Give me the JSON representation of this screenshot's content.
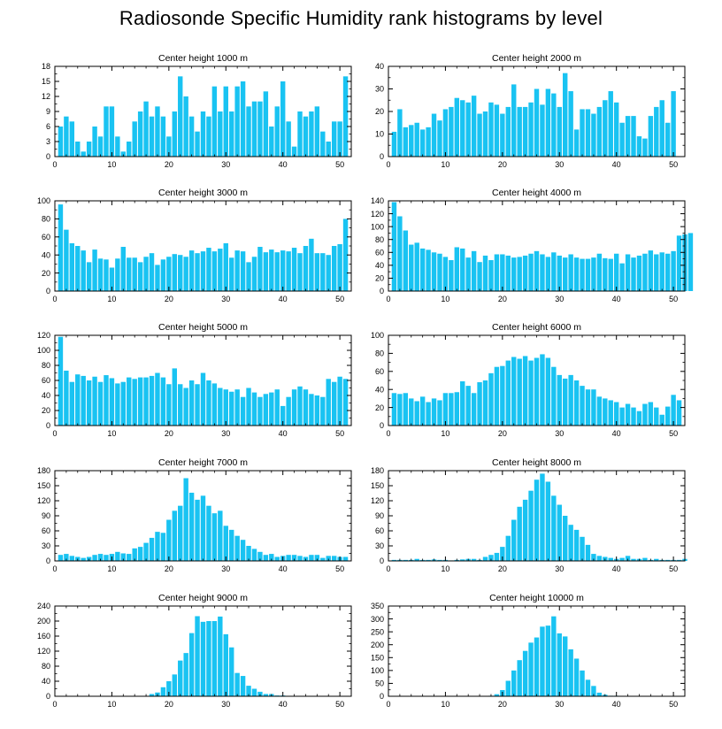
{
  "title": "Radiosonde Specific Humidity rank histograms by level",
  "bar_color": "#19c3f2",
  "chart_data": [
    {
      "type": "bar",
      "title": "Center height 1000 m",
      "xlim": [
        0,
        52
      ],
      "ylim": [
        0,
        18
      ],
      "xticks": [
        0,
        10,
        20,
        30,
        40,
        50
      ],
      "yticks": [
        0,
        3,
        6,
        9,
        12,
        15,
        18
      ],
      "values": [
        6,
        8,
        7,
        3,
        1,
        3,
        6,
        4,
        10,
        10,
        4,
        1,
        3,
        7,
        9,
        11,
        8,
        10,
        8,
        4,
        9,
        16,
        12,
        8,
        5,
        9,
        8,
        14,
        9,
        14,
        9,
        14,
        15,
        10,
        11,
        11,
        13,
        6,
        10,
        15,
        7,
        2,
        9,
        8,
        9,
        10,
        5,
        3,
        7,
        7,
        16
      ]
    },
    {
      "type": "bar",
      "title": "Center height 2000 m",
      "xlim": [
        0,
        52
      ],
      "ylim": [
        0,
        40
      ],
      "xticks": [
        0,
        10,
        20,
        30,
        40,
        50
      ],
      "yticks": [
        0,
        10,
        20,
        30,
        40
      ],
      "values": [
        11,
        21,
        13,
        14,
        15,
        12,
        13,
        19,
        16,
        21,
        22,
        26,
        25,
        24,
        27,
        19,
        20,
        24,
        23,
        19,
        22,
        32,
        22,
        22,
        24,
        30,
        23,
        30,
        28,
        22,
        37,
        29,
        12,
        21,
        21,
        19,
        22,
        25,
        29,
        24,
        15,
        18,
        18,
        9,
        8,
        18,
        22,
        25,
        15,
        29
      ]
    },
    {
      "type": "bar",
      "title": "Center height 3000 m",
      "xlim": [
        0,
        52
      ],
      "ylim": [
        0,
        100
      ],
      "xticks": [
        0,
        10,
        20,
        30,
        40,
        50
      ],
      "yticks": [
        0,
        20,
        40,
        60,
        80,
        100
      ],
      "values": [
        96,
        68,
        53,
        50,
        45,
        32,
        46,
        36,
        35,
        26,
        36,
        49,
        37,
        37,
        32,
        38,
        42,
        29,
        35,
        38,
        41,
        40,
        38,
        45,
        42,
        44,
        48,
        44,
        47,
        53,
        37,
        45,
        44,
        32,
        38,
        49,
        43,
        46,
        43,
        45,
        44,
        48,
        42,
        50,
        58,
        42,
        42,
        40,
        50,
        52,
        80
      ]
    },
    {
      "type": "bar",
      "title": "Center height 4000 m",
      "xlim": [
        0,
        52
      ],
      "ylim": [
        0,
        140
      ],
      "xticks": [
        0,
        10,
        20,
        30,
        40,
        50
      ],
      "yticks": [
        0,
        20,
        40,
        60,
        80,
        100,
        120,
        140
      ],
      "values": [
        138,
        116,
        94,
        72,
        75,
        66,
        64,
        60,
        58,
        53,
        48,
        68,
        66,
        52,
        62,
        45,
        55,
        48,
        57,
        57,
        55,
        52,
        53,
        55,
        58,
        62,
        57,
        53,
        60,
        55,
        52,
        57,
        52,
        50,
        50,
        52,
        58,
        51,
        50,
        58,
        43,
        57,
        52,
        55,
        58,
        63,
        57,
        60,
        58,
        62,
        86,
        88,
        90
      ]
    },
    {
      "type": "bar",
      "title": "Center height 5000 m",
      "xlim": [
        0,
        52
      ],
      "ylim": [
        0,
        120
      ],
      "xticks": [
        0,
        10,
        20,
        30,
        40,
        50
      ],
      "yticks": [
        0,
        20,
        40,
        60,
        80,
        100,
        120
      ],
      "values": [
        118,
        73,
        58,
        68,
        66,
        60,
        65,
        58,
        67,
        63,
        56,
        58,
        64,
        62,
        64,
        64,
        66,
        70,
        64,
        55,
        76,
        55,
        50,
        60,
        55,
        70,
        60,
        56,
        50,
        48,
        45,
        48,
        38,
        50,
        44,
        38,
        42,
        44,
        48,
        26,
        38,
        48,
        52,
        48,
        42,
        40,
        38,
        62,
        58,
        65,
        62
      ]
    },
    {
      "type": "bar",
      "title": "Center height 6000 m",
      "xlim": [
        0,
        52
      ],
      "ylim": [
        0,
        100
      ],
      "xticks": [
        0,
        10,
        20,
        30,
        40,
        50
      ],
      "yticks": [
        0,
        20,
        40,
        60,
        80,
        100
      ],
      "values": [
        36,
        35,
        36,
        30,
        27,
        32,
        26,
        30,
        28,
        36,
        36,
        37,
        49,
        44,
        36,
        48,
        50,
        58,
        65,
        66,
        72,
        76,
        74,
        77,
        72,
        75,
        79,
        75,
        65,
        56,
        52,
        56,
        50,
        44,
        40,
        40,
        32,
        30,
        28,
        26,
        20,
        24,
        20,
        16,
        24,
        26,
        20,
        12,
        21,
        34,
        28
      ]
    },
    {
      "type": "bar",
      "title": "Center height 7000 m",
      "xlim": [
        0,
        52
      ],
      "ylim": [
        0,
        180
      ],
      "xticks": [
        0,
        10,
        20,
        30,
        40,
        50
      ],
      "yticks": [
        0,
        30,
        60,
        90,
        120,
        150,
        180
      ],
      "values": [
        12,
        14,
        10,
        8,
        6,
        8,
        12,
        14,
        12,
        14,
        18,
        15,
        14,
        25,
        28,
        36,
        46,
        58,
        56,
        82,
        100,
        110,
        165,
        136,
        122,
        130,
        110,
        95,
        100,
        70,
        62,
        50,
        42,
        30,
        24,
        18,
        12,
        14,
        8,
        10,
        12,
        12,
        10,
        8,
        12,
        12,
        6,
        10,
        10,
        8,
        8
      ]
    },
    {
      "type": "bar",
      "title": "Center height 8000 m",
      "xlim": [
        0,
        52
      ],
      "ylim": [
        0,
        180
      ],
      "xticks": [
        0,
        10,
        20,
        30,
        40,
        50
      ],
      "yticks": [
        0,
        30,
        60,
        90,
        120,
        150,
        180
      ],
      "values": [
        2,
        2,
        2,
        2,
        4,
        2,
        2,
        3,
        2,
        2,
        1,
        2,
        3,
        4,
        4,
        2,
        8,
        12,
        16,
        28,
        50,
        82,
        108,
        122,
        140,
        162,
        174,
        158,
        130,
        112,
        90,
        72,
        62,
        48,
        32,
        14,
        10,
        8,
        6,
        4,
        6,
        10,
        4,
        4,
        6,
        2,
        4,
        2,
        2,
        2,
        2,
        4
      ]
    },
    {
      "type": "bar",
      "title": "Center height 9000 m",
      "xlim": [
        0,
        52
      ],
      "ylim": [
        0,
        240
      ],
      "xticks": [
        0,
        10,
        20,
        30,
        40,
        50
      ],
      "yticks": [
        0,
        40,
        80,
        120,
        160,
        200,
        240
      ],
      "values": [
        0,
        0,
        0,
        0,
        0,
        0,
        0,
        0,
        0,
        0,
        0,
        0,
        0,
        0,
        0,
        1,
        6,
        10,
        24,
        40,
        58,
        95,
        115,
        168,
        213,
        198,
        200,
        200,
        212,
        165,
        130,
        62,
        54,
        28,
        20,
        12,
        6,
        6,
        2,
        2,
        0,
        0,
        0,
        0,
        0,
        0,
        0,
        0,
        0,
        0,
        0
      ]
    },
    {
      "type": "bar",
      "title": "Center height 10000 m",
      "xlim": [
        0,
        52
      ],
      "ylim": [
        0,
        350
      ],
      "xticks": [
        0,
        10,
        20,
        30,
        40,
        50
      ],
      "yticks": [
        0,
        50,
        100,
        150,
        200,
        250,
        300,
        350
      ],
      "values": [
        0,
        0,
        0,
        0,
        0,
        0,
        0,
        0,
        0,
        0,
        0,
        0,
        0,
        0,
        0,
        0,
        0,
        2,
        8,
        24,
        60,
        100,
        140,
        176,
        208,
        228,
        270,
        274,
        310,
        244,
        232,
        182,
        146,
        100,
        64,
        40,
        14,
        6,
        2,
        2,
        0,
        0,
        0,
        0,
        0,
        0,
        0,
        0,
        0,
        0,
        0
      ]
    }
  ]
}
